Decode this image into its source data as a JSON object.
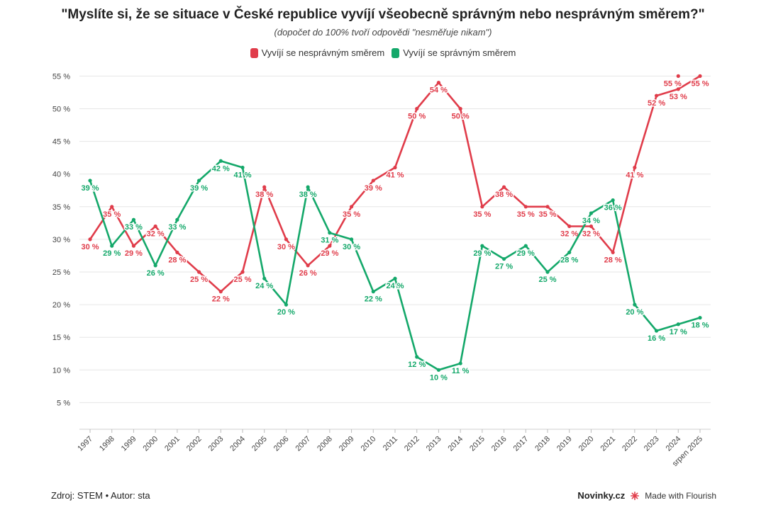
{
  "chart_data": {
    "type": "line",
    "title": "\"Myslíte si, že se situace v České republice vyvíjí všeobecně správným nebo nesprávným směrem?\"",
    "subtitle": "(dopočet do 100% tvoří odpovědi \"nesměřuje nikam\")",
    "x": [
      "1997",
      "1998",
      "1999",
      "2000",
      "2001",
      "2002",
      "2003",
      "2004",
      "2005",
      "2006",
      "2007",
      "2008",
      "2009",
      "2010",
      "2011",
      "2012",
      "2013",
      "2014",
      "2015",
      "2016",
      "2017",
      "2018",
      "2019",
      "2020",
      "2021",
      "2022",
      "2023",
      "2024",
      "srpen 2025"
    ],
    "series": [
      {
        "name": "Vyvíjí se nesprávným směrem",
        "color": "#e03c4a",
        "values": [
          30,
          35,
          29,
          32,
          28,
          25,
          22,
          25,
          38,
          30,
          26,
          29,
          35,
          39,
          41,
          50,
          54,
          50,
          35,
          38,
          35,
          35,
          32,
          32,
          28,
          41,
          52,
          53,
          55
        ],
        "extra_points": [
          {
            "x": "2024",
            "y": 55,
            "label": "55 %"
          }
        ]
      },
      {
        "name": "Vyvíjí se správným směrem",
        "color": "#14a86a",
        "values": [
          39,
          29,
          33,
          26,
          33,
          39,
          42,
          41,
          24,
          20,
          38,
          31,
          30,
          22,
          24,
          12,
          10,
          11,
          29,
          27,
          29,
          25,
          28,
          34,
          36,
          20,
          16,
          17,
          18
        ]
      }
    ],
    "ylim": [
      0,
      55
    ],
    "yticks": [
      5,
      10,
      15,
      20,
      25,
      30,
      35,
      40,
      45,
      50,
      55
    ],
    "tick_suffix": " %",
    "grid": true,
    "legend_position": "top-center"
  },
  "footer": {
    "source": "Zdroj: STEM • Autor: sta",
    "brand": "Novinky.cz",
    "made_with": "Made with Flourish"
  }
}
